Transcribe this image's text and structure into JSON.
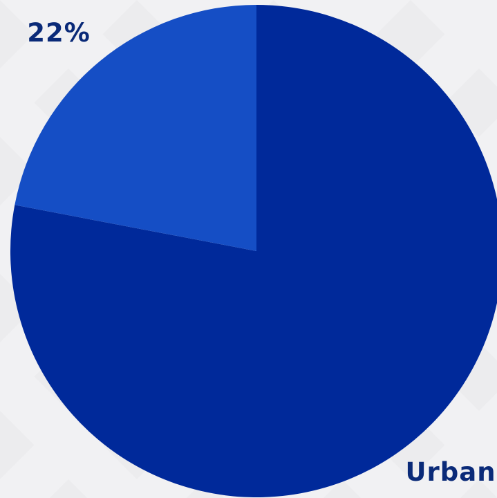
{
  "chart_data": {
    "type": "pie",
    "slices": [
      {
        "label": "Urban",
        "value": 78,
        "color": "#00299a",
        "data_label": "Urban"
      },
      {
        "label": "",
        "value": 22,
        "color": "#154ec5",
        "data_label": "22%"
      }
    ],
    "label_color": "#0a2a78",
    "background_color": "#f1f1f3",
    "legend": "none"
  }
}
